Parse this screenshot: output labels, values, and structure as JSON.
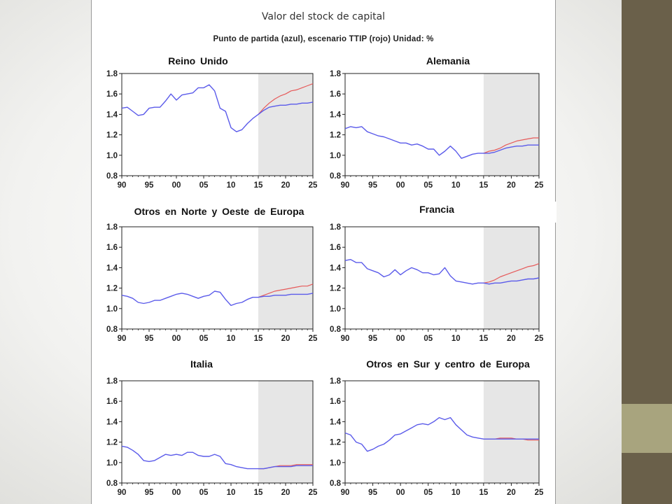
{
  "slide": {
    "title": "Valor del stock de capital",
    "subtitle": "Punto de partida (azul), escenario TTIP (rojo) Unidad: %"
  },
  "colors": {
    "baseline": "#5b5bea",
    "ttip": "#e65a5a",
    "forecast_shade": "#e6e6e6"
  },
  "chart_data": [
    {
      "type": "line",
      "title": "Reino Unido",
      "xlim": [
        1990,
        2025
      ],
      "ylim": [
        0.8,
        1.8
      ],
      "x_ticks": [
        "90",
        "95",
        "00",
        "05",
        "10",
        "15",
        "20",
        "25"
      ],
      "y_ticks": [
        "0.8",
        "1.0",
        "1.2",
        "1.4",
        "1.6",
        "1.8"
      ],
      "shaded_from": 2015,
      "series": [
        {
          "name": "Punto de partida (azul)",
          "x": [
            1990,
            1991,
            1992,
            1993,
            1994,
            1995,
            1996,
            1997,
            1998,
            1999,
            2000,
            2001,
            2002,
            2003,
            2004,
            2005,
            2006,
            2007,
            2008,
            2009,
            2010,
            2011,
            2012,
            2013,
            2014,
            2015,
            2016,
            2017,
            2018,
            2019,
            2020,
            2021,
            2022,
            2023,
            2024,
            2025
          ],
          "y": [
            1.46,
            1.47,
            1.43,
            1.39,
            1.4,
            1.46,
            1.47,
            1.47,
            1.53,
            1.6,
            1.54,
            1.59,
            1.6,
            1.61,
            1.66,
            1.66,
            1.69,
            1.63,
            1.46,
            1.43,
            1.27,
            1.23,
            1.25,
            1.31,
            1.36,
            1.4,
            1.44,
            1.47,
            1.48,
            1.49,
            1.49,
            1.5,
            1.5,
            1.51,
            1.51,
            1.52
          ]
        },
        {
          "name": "Escenario TTIP (rojo)",
          "x": [
            2015,
            2016,
            2017,
            2018,
            2019,
            2020,
            2021,
            2022,
            2023,
            2024,
            2025
          ],
          "y": [
            1.4,
            1.46,
            1.51,
            1.55,
            1.58,
            1.6,
            1.63,
            1.64,
            1.66,
            1.68,
            1.7
          ]
        }
      ]
    },
    {
      "type": "line",
      "title": "Alemania",
      "xlim": [
        1990,
        2025
      ],
      "ylim": [
        0.8,
        1.8
      ],
      "x_ticks": [
        "90",
        "95",
        "00",
        "05",
        "10",
        "15",
        "20",
        "25"
      ],
      "y_ticks": [
        "0.8",
        "1.0",
        "1.2",
        "1.4",
        "1.6",
        "1.8"
      ],
      "shaded_from": 2015,
      "series": [
        {
          "name": "Punto de partida (azul)",
          "x": [
            1990,
            1991,
            1992,
            1993,
            1994,
            1995,
            1996,
            1997,
            1998,
            1999,
            2000,
            2001,
            2002,
            2003,
            2004,
            2005,
            2006,
            2007,
            2008,
            2009,
            2010,
            2011,
            2012,
            2013,
            2014,
            2015,
            2016,
            2017,
            2018,
            2019,
            2020,
            2021,
            2022,
            2023,
            2024,
            2025
          ],
          "y": [
            1.26,
            1.28,
            1.27,
            1.28,
            1.23,
            1.21,
            1.19,
            1.18,
            1.16,
            1.14,
            1.12,
            1.12,
            1.1,
            1.11,
            1.09,
            1.06,
            1.06,
            1.0,
            1.04,
            1.09,
            1.04,
            0.97,
            0.99,
            1.01,
            1.02,
            1.02,
            1.02,
            1.03,
            1.05,
            1.07,
            1.08,
            1.09,
            1.09,
            1.1,
            1.1,
            1.1
          ]
        },
        {
          "name": "Escenario TTIP (rojo)",
          "x": [
            2015,
            2016,
            2017,
            2018,
            2019,
            2020,
            2021,
            2022,
            2023,
            2024,
            2025
          ],
          "y": [
            1.02,
            1.04,
            1.05,
            1.07,
            1.1,
            1.12,
            1.14,
            1.15,
            1.16,
            1.17,
            1.17
          ]
        }
      ]
    },
    {
      "type": "line",
      "title": "Otros en Norte y Oeste de Europa",
      "xlim": [
        1990,
        2025
      ],
      "ylim": [
        0.8,
        1.8
      ],
      "x_ticks": [
        "90",
        "95",
        "00",
        "05",
        "10",
        "15",
        "20",
        "25"
      ],
      "y_ticks": [
        "0.8",
        "1.0",
        "1.2",
        "1.4",
        "1.6",
        "1.8"
      ],
      "shaded_from": 2015,
      "series": [
        {
          "name": "Punto de partida (azul)",
          "x": [
            1990,
            1991,
            1992,
            1993,
            1994,
            1995,
            1996,
            1997,
            1998,
            1999,
            2000,
            2001,
            2002,
            2003,
            2004,
            2005,
            2006,
            2007,
            2008,
            2009,
            2010,
            2011,
            2012,
            2013,
            2014,
            2015,
            2016,
            2017,
            2018,
            2019,
            2020,
            2021,
            2022,
            2023,
            2024,
            2025
          ],
          "y": [
            1.13,
            1.12,
            1.1,
            1.06,
            1.05,
            1.06,
            1.08,
            1.08,
            1.1,
            1.12,
            1.14,
            1.15,
            1.14,
            1.12,
            1.1,
            1.12,
            1.13,
            1.17,
            1.16,
            1.09,
            1.03,
            1.05,
            1.06,
            1.09,
            1.11,
            1.11,
            1.12,
            1.12,
            1.13,
            1.13,
            1.13,
            1.14,
            1.14,
            1.14,
            1.14,
            1.15
          ]
        },
        {
          "name": "Escenario TTIP (rojo)",
          "x": [
            2015,
            2016,
            2017,
            2018,
            2019,
            2020,
            2021,
            2022,
            2023,
            2024,
            2025
          ],
          "y": [
            1.11,
            1.13,
            1.15,
            1.17,
            1.18,
            1.19,
            1.2,
            1.21,
            1.22,
            1.22,
            1.24
          ]
        }
      ]
    },
    {
      "type": "line",
      "title": "Francia",
      "xlim": [
        1990,
        2025
      ],
      "ylim": [
        0.8,
        1.8
      ],
      "x_ticks": [
        "90",
        "95",
        "00",
        "05",
        "10",
        "15",
        "20",
        "25"
      ],
      "y_ticks": [
        "0.8",
        "1.0",
        "1.2",
        "1.4",
        "1.6",
        "1.8"
      ],
      "shaded_from": 2015,
      "series": [
        {
          "name": "Punto de partida (azul)",
          "x": [
            1990,
            1991,
            1992,
            1993,
            1994,
            1995,
            1996,
            1997,
            1998,
            1999,
            2000,
            2001,
            2002,
            2003,
            2004,
            2005,
            2006,
            2007,
            2008,
            2009,
            2010,
            2011,
            2012,
            2013,
            2014,
            2015,
            2016,
            2017,
            2018,
            2019,
            2020,
            2021,
            2022,
            2023,
            2024,
            2025
          ],
          "y": [
            1.47,
            1.48,
            1.45,
            1.45,
            1.39,
            1.37,
            1.35,
            1.31,
            1.33,
            1.38,
            1.33,
            1.37,
            1.4,
            1.38,
            1.35,
            1.35,
            1.33,
            1.34,
            1.4,
            1.32,
            1.27,
            1.26,
            1.25,
            1.24,
            1.25,
            1.25,
            1.24,
            1.25,
            1.25,
            1.26,
            1.27,
            1.27,
            1.28,
            1.29,
            1.29,
            1.3
          ]
        },
        {
          "name": "Escenario TTIP (rojo)",
          "x": [
            2015,
            2016,
            2017,
            2018,
            2019,
            2020,
            2021,
            2022,
            2023,
            2024,
            2025
          ],
          "y": [
            1.25,
            1.26,
            1.28,
            1.31,
            1.33,
            1.35,
            1.37,
            1.39,
            1.41,
            1.42,
            1.44
          ]
        }
      ]
    },
    {
      "type": "line",
      "title": "Italia",
      "xlim": [
        1990,
        2025
      ],
      "ylim": [
        0.8,
        1.8
      ],
      "x_ticks": [
        "90",
        "95",
        "00",
        "05",
        "10",
        "15",
        "20",
        "25"
      ],
      "y_ticks": [
        "0.8",
        "1.0",
        "1.2",
        "1.4",
        "1.6",
        "1.8"
      ],
      "shaded_from": 2015,
      "series": [
        {
          "name": "Punto de partida (azul)",
          "x": [
            1990,
            1991,
            1992,
            1993,
            1994,
            1995,
            1996,
            1997,
            1998,
            1999,
            2000,
            2001,
            2002,
            2003,
            2004,
            2005,
            2006,
            2007,
            2008,
            2009,
            2010,
            2011,
            2012,
            2013,
            2014,
            2015,
            2016,
            2017,
            2018,
            2019,
            2020,
            2021,
            2022,
            2023,
            2024,
            2025
          ],
          "y": [
            1.16,
            1.15,
            1.12,
            1.08,
            1.02,
            1.01,
            1.02,
            1.05,
            1.08,
            1.07,
            1.08,
            1.07,
            1.1,
            1.1,
            1.07,
            1.06,
            1.06,
            1.08,
            1.06,
            0.99,
            0.98,
            0.96,
            0.95,
            0.94,
            0.94,
            0.94,
            0.94,
            0.95,
            0.96,
            0.96,
            0.96,
            0.96,
            0.97,
            0.97,
            0.97,
            0.97
          ]
        },
        {
          "name": "Escenario TTIP (rojo)",
          "x": [
            2015,
            2016,
            2017,
            2018,
            2019,
            2020,
            2021,
            2022,
            2023,
            2024,
            2025
          ],
          "y": [
            0.94,
            0.94,
            0.95,
            0.96,
            0.97,
            0.97,
            0.97,
            0.98,
            0.98,
            0.98,
            0.98
          ]
        }
      ]
    },
    {
      "type": "line",
      "title": "Otros en Sur y centro de Europa",
      "xlim": [
        1990,
        2025
      ],
      "ylim": [
        0.8,
        1.8
      ],
      "x_ticks": [
        "90",
        "95",
        "00",
        "05",
        "10",
        "15",
        "20",
        "25"
      ],
      "y_ticks": [
        "0.8",
        "1.0",
        "1.2",
        "1.4",
        "1.6",
        "1.8"
      ],
      "shaded_from": 2015,
      "series": [
        {
          "name": "Punto de partida (azul)",
          "x": [
            1990,
            1991,
            1992,
            1993,
            1994,
            1995,
            1996,
            1997,
            1998,
            1999,
            2000,
            2001,
            2002,
            2003,
            2004,
            2005,
            2006,
            2007,
            2008,
            2009,
            2010,
            2011,
            2012,
            2013,
            2014,
            2015,
            2016,
            2017,
            2018,
            2019,
            2020,
            2021,
            2022,
            2023,
            2024,
            2025
          ],
          "y": [
            1.29,
            1.27,
            1.2,
            1.18,
            1.11,
            1.13,
            1.16,
            1.18,
            1.22,
            1.27,
            1.28,
            1.31,
            1.34,
            1.37,
            1.38,
            1.37,
            1.4,
            1.44,
            1.42,
            1.44,
            1.37,
            1.32,
            1.27,
            1.25,
            1.24,
            1.23,
            1.23,
            1.23,
            1.23,
            1.23,
            1.23,
            1.23,
            1.23,
            1.23,
            1.23,
            1.23
          ]
        },
        {
          "name": "Escenario TTIP (rojo)",
          "x": [
            2015,
            2016,
            2017,
            2018,
            2019,
            2020,
            2021,
            2022,
            2023,
            2024,
            2025
          ],
          "y": [
            1.23,
            1.23,
            1.23,
            1.24,
            1.24,
            1.24,
            1.23,
            1.23,
            1.22,
            1.22,
            1.22
          ]
        }
      ]
    }
  ]
}
